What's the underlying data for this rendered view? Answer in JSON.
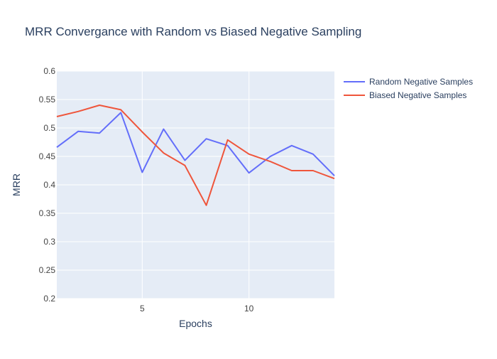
{
  "colors": {
    "background": "#ffffff",
    "plot_background": "#e5ecf6",
    "grid": "#ffffff",
    "text": "#2a3f5f",
    "tick_text": "#444444"
  },
  "chart_data": {
    "type": "line",
    "title": "MRR Convergance with Random vs Biased Negative Sampling",
    "xlabel": "Epochs",
    "ylabel": "MRR",
    "xlim": [
      1,
      14
    ],
    "ylim": [
      0.2,
      0.6
    ],
    "x_ticks": [
      5,
      10
    ],
    "x_tick_labels": [
      "5",
      "10"
    ],
    "y_ticks": [
      0.2,
      0.25,
      0.3,
      0.35,
      0.4,
      0.45,
      0.5,
      0.55,
      0.6
    ],
    "y_tick_labels": [
      "0.2",
      "0.25",
      "0.3",
      "0.35",
      "0.4",
      "0.45",
      "0.5",
      "0.55",
      "0.6"
    ],
    "x": [
      1,
      2,
      3,
      4,
      5,
      6,
      7,
      8,
      9,
      10,
      11,
      12,
      13,
      14
    ],
    "series": [
      {
        "name": "Random Negative Samples",
        "color": "#636efa",
        "values": [
          0.466,
          0.494,
          0.491,
          0.527,
          0.422,
          0.498,
          0.443,
          0.481,
          0.469,
          0.421,
          0.45,
          0.469,
          0.454,
          0.416
        ]
      },
      {
        "name": "Biased Negative Samples",
        "color": "#ef553b",
        "values": [
          0.52,
          0.529,
          0.54,
          0.532,
          0.493,
          0.456,
          0.434,
          0.364,
          0.479,
          0.454,
          0.441,
          0.425,
          0.425,
          0.411
        ]
      }
    ],
    "legend_position": "top-right",
    "grid": true
  }
}
